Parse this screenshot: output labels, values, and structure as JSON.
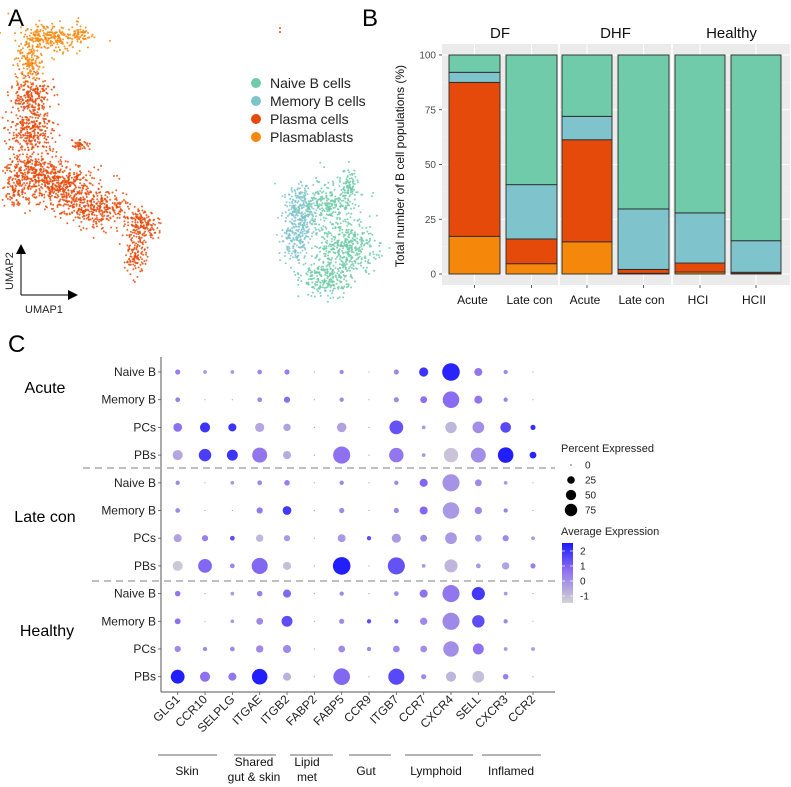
{
  "figure": {
    "panel_labels": [
      "A",
      "B",
      "C"
    ]
  },
  "chart_data": [
    {
      "panel": "A",
      "type": "scatter",
      "title": "",
      "xlabel": "UMAP1",
      "ylabel": "UMAP2",
      "legend_position": "right",
      "legend": [
        {
          "label": "Naive B cells",
          "color": "#6fcba9"
        },
        {
          "label": "Memory B cells",
          "color": "#7fc3cd"
        },
        {
          "label": "Plasma cells",
          "color": "#e64a0a"
        },
        {
          "label": "Plasmablasts",
          "color": "#f5870a"
        }
      ],
      "clusters": [
        {
          "population": "Plasmablasts",
          "location": "upper-left hook"
        },
        {
          "population": "Plasma cells",
          "location": "left large cluster"
        },
        {
          "population": "Memory B cells",
          "location": "lower-right cluster, left side"
        },
        {
          "population": "Naive B cells",
          "location": "lower-right cluster, right side"
        }
      ]
    },
    {
      "panel": "B",
      "type": "bar",
      "stacked": true,
      "ylabel": "Total number of B cell populations (%)",
      "xlabel": "",
      "ylim": [
        0,
        100
      ],
      "yticks": [
        0,
        25,
        50,
        75,
        100
      ],
      "grid": true,
      "facets": [
        {
          "label": "DF",
          "categories": [
            "Acute",
            "Late con"
          ]
        },
        {
          "label": "DHF",
          "categories": [
            "Acute",
            "Late con"
          ]
        },
        {
          "label": "Healthy",
          "categories": [
            "HCI",
            "HCII"
          ]
        }
      ],
      "series_order_bottom_to_top": [
        "Plasmablasts",
        "Plasma cells",
        "Memory B cells",
        "Naive B cells"
      ],
      "series": [
        {
          "name": "Plasmablasts",
          "color": "#f5870a",
          "values": [
            17.2,
            4.7,
            14.7,
            0.3,
            0.9,
            0.2
          ]
        },
        {
          "name": "Plasma cells",
          "color": "#e64a0a",
          "values": [
            70.3,
            11.3,
            46.6,
            1.8,
            4.1,
            0.6
          ]
        },
        {
          "name": "Memory B cells",
          "color": "#7fc3cd",
          "values": [
            4.6,
            24.8,
            10.7,
            27.6,
            22.9,
            14.4
          ]
        },
        {
          "name": "Naive B cells",
          "color": "#6fcba9",
          "values": [
            7.9,
            59.2,
            28.0,
            70.3,
            72.1,
            84.8
          ]
        }
      ]
    },
    {
      "panel": "C",
      "type": "dotplot",
      "genes": [
        "GLG1",
        "CCR10",
        "SELPLG",
        "ITGAE",
        "ITGB2",
        "FABP2",
        "FABP5",
        "CCR9",
        "ITGB7",
        "CCR7",
        "CXCR4",
        "SELL",
        "CXCR3",
        "CCR2"
      ],
      "gene_categories": [
        {
          "label": "Skin",
          "genes": [
            "GLG1",
            "CCR10",
            "SELPLG"
          ]
        },
        {
          "label": "Shared\ngut & skin",
          "line1": "Shared",
          "line2": "gut & skin",
          "genes": [
            "ITGAE",
            "ITGB2"
          ]
        },
        {
          "label": "Lipid\nmet",
          "line1": "Lipid",
          "line2": "met",
          "genes": [
            "FABP2",
            "FABP5"
          ]
        },
        {
          "label": "Gut",
          "genes": [
            "CCR9",
            "ITGB7"
          ]
        },
        {
          "label": "Lymphoid",
          "genes": [
            "CCR7",
            "CXCR4",
            "SELL"
          ]
        },
        {
          "label": "Inflamed",
          "genes": [
            "CXCR3",
            "CCR2"
          ]
        }
      ],
      "groups": [
        {
          "label": "Acute",
          "rows": [
            "Naive B",
            "Memory B",
            "PCs",
            "PBs"
          ]
        },
        {
          "label": "Late con",
          "rows": [
            "Naive B",
            "Memory B",
            "PCs",
            "PBs"
          ]
        },
        {
          "label": "Healthy",
          "rows": [
            "Naive B",
            "Memory B",
            "PCs",
            "PBs"
          ]
        }
      ],
      "size_legend": {
        "title": "Percent Expressed",
        "values": [
          0,
          25,
          50,
          75
        ]
      },
      "color_legend": {
        "title": "Average Expression",
        "ticks": [
          2,
          1,
          0,
          -1
        ],
        "range": [
          -1.2,
          2.5
        ],
        "low_color": "#d3d3d3",
        "high_color": "#1a1aff"
      },
      "pct": [
        [
          5,
          2,
          2,
          4,
          5,
          1,
          3,
          1,
          5,
          20,
          85,
          15,
          3,
          1
        ],
        [
          4,
          1,
          1,
          4,
          8,
          1,
          3,
          1,
          5,
          10,
          75,
          15,
          3,
          1
        ],
        [
          18,
          25,
          15,
          20,
          12,
          1,
          22,
          1,
          50,
          2,
          33,
          35,
          28,
          5
        ],
        [
          25,
          40,
          30,
          60,
          15,
          1,
          80,
          1,
          55,
          2,
          55,
          60,
          65,
          10
        ],
        [
          3,
          1,
          2,
          4,
          6,
          1,
          3,
          1,
          3,
          15,
          80,
          10,
          2,
          1
        ],
        [
          4,
          1,
          1,
          8,
          18,
          1,
          5,
          1,
          5,
          15,
          75,
          12,
          3,
          1
        ],
        [
          15,
          8,
          4,
          12,
          8,
          1,
          14,
          3,
          20,
          10,
          35,
          10,
          8,
          2
        ],
        [
          25,
          50,
          4,
          70,
          15,
          1,
          85,
          1,
          80,
          2,
          45,
          4,
          12,
          5
        ],
        [
          6,
          1,
          2,
          6,
          15,
          1,
          3,
          1,
          4,
          15,
          80,
          45,
          2,
          1
        ],
        [
          7,
          1,
          2,
          10,
          30,
          1,
          5,
          3,
          3,
          12,
          80,
          40,
          3,
          1
        ],
        [
          8,
          3,
          4,
          12,
          15,
          1,
          10,
          3,
          10,
          10,
          65,
          30,
          2,
          2
        ],
        [
          50,
          25,
          15,
          65,
          15,
          1,
          75,
          1,
          70,
          5,
          25,
          35,
          6,
          1
        ]
      ],
      "avg": [
        [
          0.5,
          0,
          0,
          0.3,
          0.5,
          0,
          0.3,
          0,
          0.3,
          2.0,
          2.3,
          0.7,
          0.3,
          0
        ],
        [
          0.5,
          0,
          0,
          0.3,
          0.9,
          0,
          0.3,
          0,
          0.3,
          0.8,
          0.9,
          0.7,
          0.4,
          0
        ],
        [
          0.8,
          2.0,
          2.0,
          -0.3,
          -0.2,
          0,
          -0.2,
          0,
          1.4,
          0,
          -0.6,
          0.2,
          1.6,
          2.1
        ],
        [
          -0.3,
          1.8,
          2.0,
          0.7,
          -0.4,
          0,
          0.8,
          0,
          0.7,
          0,
          -0.9,
          0.2,
          2.4,
          2.3
        ],
        [
          0.3,
          0,
          0,
          0.3,
          0.5,
          0,
          0.3,
          0,
          0.3,
          1.0,
          0.1,
          0.3,
          0,
          0
        ],
        [
          0.3,
          0,
          0,
          0.6,
          1.9,
          0,
          0.3,
          0,
          0.3,
          1.0,
          0,
          0.3,
          0.5,
          0
        ],
        [
          -0.2,
          0.5,
          1.5,
          -0.6,
          0,
          0,
          0,
          1.5,
          0,
          0.3,
          0,
          0,
          0.3,
          0
        ],
        [
          -1.0,
          1.0,
          0.3,
          1.0,
          -0.8,
          0,
          2.4,
          0,
          1.4,
          0,
          -0.6,
          0,
          -0.2,
          0.5
        ],
        [
          0.7,
          0,
          0,
          0.5,
          1.0,
          0,
          0.3,
          0,
          0.3,
          0.8,
          0.7,
          1.9,
          0,
          0
        ],
        [
          0.8,
          0,
          0,
          0.3,
          1.5,
          0,
          0.3,
          1.5,
          1.0,
          0.3,
          0.3,
          1.5,
          0.3,
          0
        ],
        [
          0.3,
          0.3,
          0.3,
          0.3,
          0.3,
          0,
          0.3,
          0.3,
          0.3,
          0.2,
          0.2,
          0.8,
          0,
          0
        ],
        [
          2.4,
          0.8,
          0.7,
          2.4,
          -0.5,
          0,
          1.0,
          0,
          1.6,
          0.3,
          -0.6,
          -0.8,
          0.5,
          0
        ]
      ]
    }
  ]
}
